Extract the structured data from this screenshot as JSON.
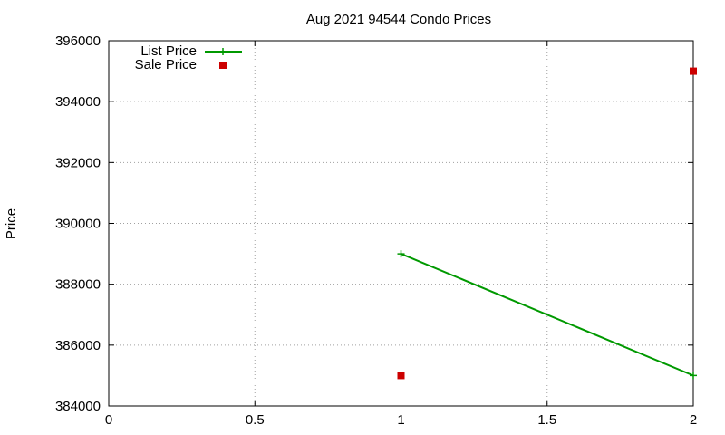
{
  "chart_data": {
    "type": "line",
    "title": "Aug 2021 94544 Condo Prices",
    "xlabel": "",
    "ylabel": "Price",
    "xlim": [
      0,
      2
    ],
    "ylim": [
      384000,
      396000
    ],
    "x_ticks": [
      "0",
      "0.5",
      "1",
      "1.5",
      "2"
    ],
    "y_ticks": [
      "384000",
      "386000",
      "388000",
      "390000",
      "392000",
      "394000",
      "396000"
    ],
    "grid": true,
    "legend_position": "top-left",
    "series": [
      {
        "name": "List Price",
        "style": "line-points",
        "color": "#009900",
        "x": [
          1,
          2
        ],
        "values": [
          389000,
          385000
        ]
      },
      {
        "name": "Sale Price",
        "style": "points",
        "color": "#cc0000",
        "x": [
          1,
          2
        ],
        "values": [
          385000,
          395000
        ]
      }
    ]
  }
}
